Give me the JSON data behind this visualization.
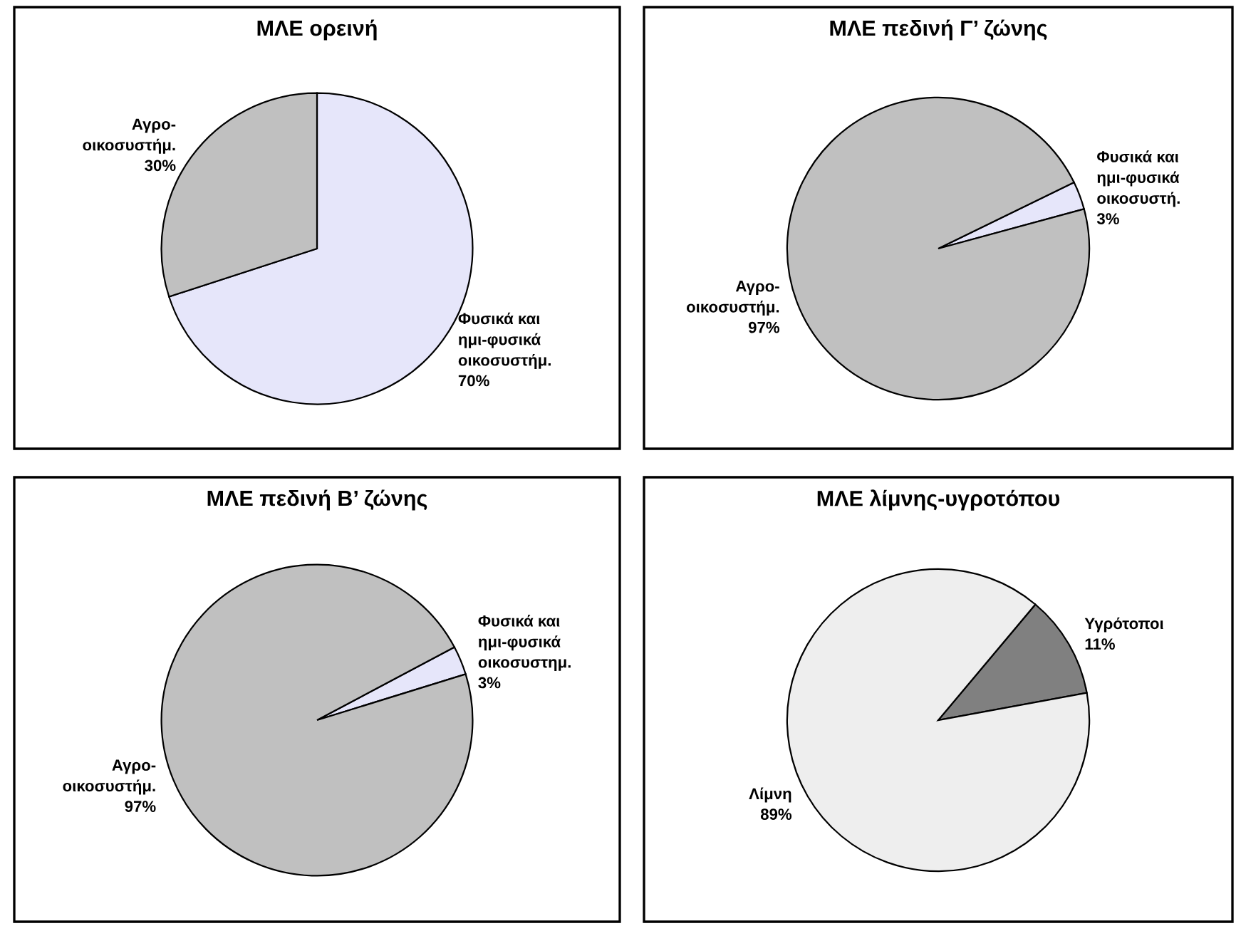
{
  "chart_data": [
    {
      "type": "pie",
      "title": "ΜΛΕ ορεινή",
      "categories": [
        "Φυσικά και\nημι-φυσικά\nοικοσυστήμ.",
        "Αγρο-\nοικοσυστήμ."
      ],
      "values": [
        70,
        30
      ],
      "colors": [
        "#e6e6fa",
        "#c0c0c0"
      ],
      "value_labels": [
        "70%",
        "30%"
      ]
    },
    {
      "type": "pie",
      "title": "ΜΛΕ πεδινή Γ’ ζώνης",
      "categories": [
        "Φυσικά και\nημι-φυσικά\nοικοσυστή.",
        "Αγρο-\nοικοσυστήμ."
      ],
      "values": [
        3,
        97
      ],
      "colors": [
        "#e6e6fa",
        "#c0c0c0"
      ],
      "value_labels": [
        "3%",
        "97%"
      ]
    },
    {
      "type": "pie",
      "title": "ΜΛΕ πεδινή Β’ ζώνης",
      "categories": [
        "Φυσικά και\nημι-φυσικά\nοικοσυστημ.",
        "Αγρο-\nοικοσυστήμ."
      ],
      "values": [
        3,
        97
      ],
      "colors": [
        "#e6e6fa",
        "#c0c0c0"
      ],
      "value_labels": [
        "3%",
        "97%"
      ]
    },
    {
      "type": "pie",
      "title": "ΜΛΕ λίμνης-υγροτόπου",
      "categories": [
        "Υγρότοποι",
        "Λίμνη"
      ],
      "values": [
        11,
        89
      ],
      "colors": [
        "#808080",
        "#eeeeee"
      ],
      "value_labels": [
        "11%",
        "89%"
      ]
    }
  ]
}
